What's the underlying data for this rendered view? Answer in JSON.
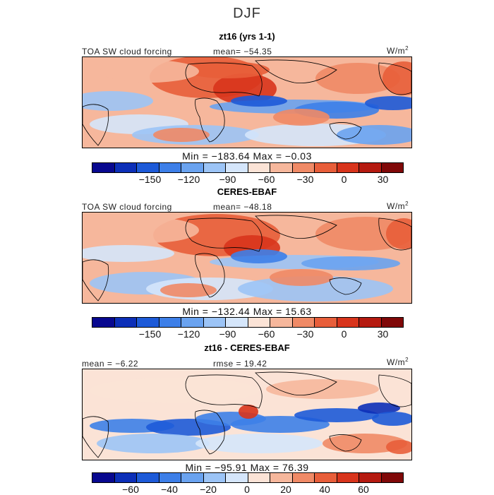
{
  "figure": {
    "season": "DJF",
    "units_base": "W/m",
    "units_exp": "2"
  },
  "palette_main": [
    "#08088f",
    "#0c2fb8",
    "#1d5ad8",
    "#3d7fe8",
    "#6aa3f0",
    "#9cc4f6",
    "#d5e6fb",
    "#fbe3d6",
    "#f6b79c",
    "#f08a66",
    "#e85e3a",
    "#d8341c",
    "#b51a10",
    "#800808"
  ],
  "palette_diff": [
    "#08088f",
    "#0c2fb8",
    "#1d5ad8",
    "#3d7fe8",
    "#6aa3f0",
    "#9cc4f6",
    "#d5e6fb",
    "#fbe3d6",
    "#f6b79c",
    "#f08a66",
    "#e85e3a",
    "#d8341c",
    "#b51a10",
    "#800808"
  ],
  "chart_data": [
    {
      "type": "heatmap",
      "title": "zt16 (yrs 1-1)",
      "field_label": "TOA SW cloud forcing",
      "mean_text": "mean=  −54.35",
      "units": "W/m2",
      "min": -183.64,
      "max": -0.03,
      "min_max_text": "Min  =  −183.64  Max  =    −0.03",
      "colorbar_ticks": [
        {
          "label": "−150",
          "value": -150
        },
        {
          "label": "−120",
          "value": -120
        },
        {
          "label": "−90",
          "value": -90
        },
        {
          "label": "−60",
          "value": -60
        },
        {
          "label": "−30",
          "value": -30
        },
        {
          "label": "0",
          "value": 0
        },
        {
          "label": "30",
          "value": 30
        }
      ],
      "colorbar_range": [
        -195,
        45
      ]
    },
    {
      "type": "heatmap",
      "title": "CERES-EBAF",
      "field_label": "TOA SW cloud forcing",
      "mean_text": "mean=  −48.18",
      "units": "W/m2",
      "min": -132.44,
      "max": 15.63,
      "min_max_text": "Min  =  −132.44  Max  =    15.63",
      "colorbar_ticks": [
        {
          "label": "−150",
          "value": -150
        },
        {
          "label": "−120",
          "value": -120
        },
        {
          "label": "−90",
          "value": -90
        },
        {
          "label": "−60",
          "value": -60
        },
        {
          "label": "−30",
          "value": -30
        },
        {
          "label": "0",
          "value": 0
        },
        {
          "label": "30",
          "value": 30
        }
      ],
      "colorbar_range": [
        -195,
        45
      ]
    },
    {
      "type": "heatmap",
      "title": "zt16 - CERES-EBAF",
      "field_label": "",
      "mean_text": "mean  =    −6.22",
      "rmse_text": "rmse  =   19.42",
      "units": "W/m2",
      "min": -95.91,
      "max": 76.39,
      "min_max_text": "Min  =  −95.91  Max  =    76.39",
      "colorbar_ticks": [
        {
          "label": "−60",
          "value": -60
        },
        {
          "label": "−40",
          "value": -40
        },
        {
          "label": "−20",
          "value": -20
        },
        {
          "label": "0",
          "value": 0
        },
        {
          "label": "20",
          "value": 20
        },
        {
          "label": "40",
          "value": 40
        },
        {
          "label": "60",
          "value": 60
        }
      ],
      "colorbar_range": [
        -80,
        80
      ]
    }
  ]
}
